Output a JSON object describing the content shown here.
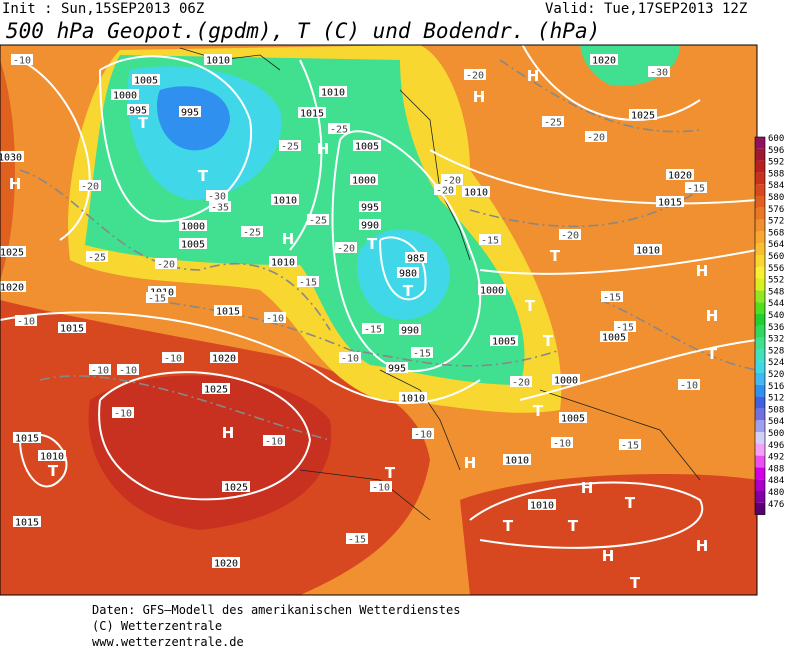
{
  "header": {
    "init": "Init : Sun,15SEP2013 06Z",
    "valid": "Valid: Tue,17SEP2013 12Z",
    "title": "500 hPa Geopot.(gpdm), T (C) und Bodendr. (hPa)"
  },
  "map": {
    "pressure_centers": [
      "H",
      "T",
      "T",
      "H",
      "H",
      "T",
      "T",
      "H",
      "H",
      "T",
      "T",
      "T",
      "H",
      "H",
      "T",
      "T",
      "H",
      "T",
      "T",
      "T",
      "H",
      "H",
      "T",
      "H",
      "H",
      "T",
      "T"
    ],
    "isobar_labels": [
      1005,
      1010,
      1000,
      995,
      995,
      1010,
      1015,
      1005,
      1000,
      995,
      990,
      985,
      980,
      990,
      995,
      1000,
      1005,
      1010,
      1010,
      1005,
      1000,
      1010,
      1010,
      1015,
      1015,
      1020,
      1025,
      1015,
      1010,
      1025,
      1015,
      1020,
      1010,
      1010,
      1010,
      1005,
      1000,
      1005,
      1010,
      1015,
      1020,
      1025,
      1025,
      1020,
      1030,
      1020
    ],
    "temperature_labels": [
      -10,
      -20,
      -25,
      -30,
      -35,
      -25,
      -25,
      -20,
      -25,
      -25,
      -20,
      -15,
      -15,
      -10,
      -10,
      -10,
      -10,
      -10,
      -10,
      -10,
      -15,
      -15,
      -10,
      -10,
      -10,
      -15,
      -20,
      -25,
      -20,
      -30,
      -20,
      -20,
      -15,
      -20,
      -15,
      -15,
      -20,
      -10,
      -15,
      -10,
      -15
    ]
  },
  "colorbar": {
    "levels": [
      476,
      480,
      484,
      488,
      492,
      496,
      500,
      504,
      508,
      512,
      516,
      520,
      524,
      528,
      532,
      536,
      540,
      544,
      548,
      552,
      556,
      560,
      564,
      568,
      572,
      576,
      580,
      584,
      588,
      592,
      596,
      600
    ],
    "colors": [
      "#5a0070",
      "#8000a0",
      "#a800c8",
      "#d000e8",
      "#e850f0",
      "#f4a0f8",
      "#d0d0f8",
      "#a0a0f0",
      "#7070e0",
      "#4060e0",
      "#3090f0",
      "#40b8f0",
      "#40d8e8",
      "#40e0c0",
      "#40e090",
      "#30d860",
      "#20d030",
      "#50e020",
      "#90e820",
      "#d8f020",
      "#f8f030",
      "#f8d830",
      "#f8c030",
      "#f8a830",
      "#f09030",
      "#e87828",
      "#e06020",
      "#d84820",
      "#c83020",
      "#b82020",
      "#a01830",
      "#901060"
    ]
  },
  "footer": [
    "Daten: GFS–Modell des amerikanischen Wetterdienstes",
    "(C) Wetterzentrale",
    "www.wetterzentrale.de"
  ]
}
